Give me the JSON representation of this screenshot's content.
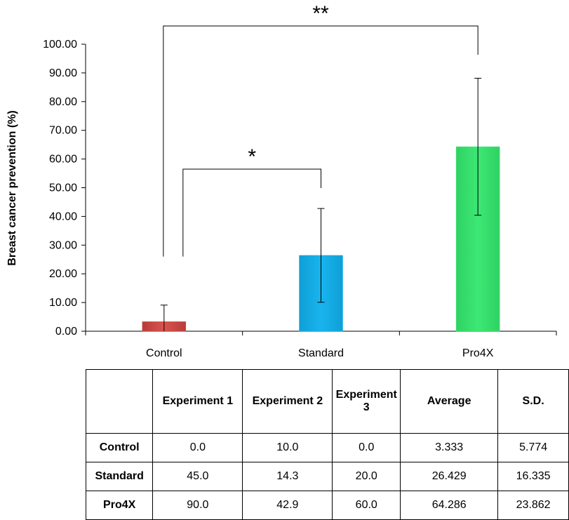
{
  "chart_data": {
    "type": "bar",
    "title": "",
    "xlabel": "",
    "ylabel": "Breast cancer prevention (%)",
    "ylim": [
      0,
      100
    ],
    "y_ticks": [
      "0.00",
      "10.00",
      "20.00",
      "30.00",
      "40.00",
      "50.00",
      "60.00",
      "70.00",
      "80.00",
      "90.00",
      "100.00"
    ],
    "categories": [
      "Control",
      "Standard",
      "Pro4X"
    ],
    "values": [
      3.333,
      26.429,
      64.286
    ],
    "errors": [
      5.774,
      16.335,
      23.862
    ],
    "colors": [
      "#d9534f",
      "#19b4ee",
      "#3de874"
    ],
    "grid": false,
    "annotations": [
      {
        "label": "*",
        "from": "Control",
        "to": "Standard"
      },
      {
        "label": "**",
        "from": "Control",
        "to": "Pro4X"
      }
    ]
  },
  "table": {
    "headers": [
      "",
      "Experiment 1",
      "Experiment 2",
      "Experiment 3",
      "Average",
      "S.D."
    ],
    "rows": [
      {
        "label": "Control",
        "cells": [
          "0.0",
          "10.0",
          "0.0",
          "3.333",
          "5.774"
        ]
      },
      {
        "label": "Standard",
        "cells": [
          "45.0",
          "14.3",
          "20.0",
          "26.429",
          "16.335"
        ]
      },
      {
        "label": "Pro4X",
        "cells": [
          "90.0",
          "42.9",
          "60.0",
          "64.286",
          "23.862"
        ]
      }
    ]
  }
}
